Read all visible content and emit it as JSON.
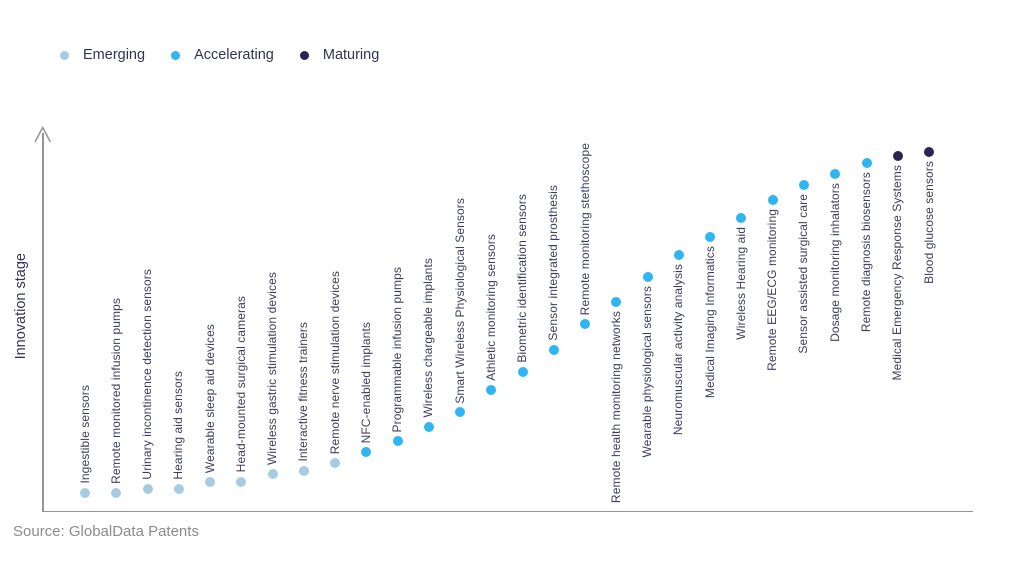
{
  "legend": {
    "items": [
      {
        "label": "Emerging",
        "color": "#a6cbe2"
      },
      {
        "label": "Accelerating",
        "color": "#2eb5f2"
      },
      {
        "label": "Maturing",
        "color": "#2b2552"
      }
    ]
  },
  "source": "Source: GlobalData Patents",
  "chart_data": {
    "type": "scatter",
    "title": "",
    "xlabel": "",
    "ylabel": "Innovation stage",
    "ylim": [
      0,
      100
    ],
    "grid": false,
    "legend_position": "top-left",
    "stages": {
      "Emerging": "#a6cbe2",
      "Accelerating": "#2eb5f2",
      "Maturing": "#2b2552"
    },
    "points": [
      {
        "label": "Ingestible sensors",
        "stage": "Emerging",
        "score": 5
      },
      {
        "label": "Remote monitored infusion pumps",
        "stage": "Emerging",
        "score": 5
      },
      {
        "label": "Urinary incontinence detection sensors",
        "stage": "Emerging",
        "score": 6
      },
      {
        "label": "Hearing aid sensors",
        "stage": "Emerging",
        "score": 6
      },
      {
        "label": "Wearable sleep aid devices",
        "stage": "Emerging",
        "score": 8
      },
      {
        "label": "Head-mounted surgical cameras",
        "stage": "Emerging",
        "score": 8
      },
      {
        "label": "Wireless gastric stimulation devices",
        "stage": "Emerging",
        "score": 10
      },
      {
        "label": "Interactive fitness trainers",
        "stage": "Emerging",
        "score": 11
      },
      {
        "label": "Remote nerve stimulation devices",
        "stage": "Emerging",
        "score": 13
      },
      {
        "label": "NFC-enabled implants",
        "stage": "Accelerating",
        "score": 16
      },
      {
        "label": "Programmable infusion pumps",
        "stage": "Accelerating",
        "score": 19
      },
      {
        "label": "Wireless chargeable implants",
        "stage": "Accelerating",
        "score": 23
      },
      {
        "label": "Smart Wireless Physiological Sensors",
        "stage": "Accelerating",
        "score": 27
      },
      {
        "label": "Athletic monitoring sensors",
        "stage": "Accelerating",
        "score": 33
      },
      {
        "label": "Biometric identification sensors",
        "stage": "Accelerating",
        "score": 38
      },
      {
        "label": "Sensor integrated prosthesis",
        "stage": "Accelerating",
        "score": 44
      },
      {
        "label": "Remote monitoring stethoscope",
        "stage": "Accelerating",
        "score": 51
      },
      {
        "label": "Remote health monitoring networks",
        "stage": "Accelerating",
        "score": 57
      },
      {
        "label": "Wearable physiological sensors",
        "stage": "Accelerating",
        "score": 64
      },
      {
        "label": "Neuromuscular activity analysis",
        "stage": "Accelerating",
        "score": 70
      },
      {
        "label": "Medical Imaging Informatics",
        "stage": "Accelerating",
        "score": 75
      },
      {
        "label": "Wireless Hearing aid",
        "stage": "Accelerating",
        "score": 80
      },
      {
        "label": "Remote EEG/ECG monitoring",
        "stage": "Accelerating",
        "score": 85
      },
      {
        "label": "Sensor assisted surgical care",
        "stage": "Accelerating",
        "score": 89
      },
      {
        "label": "Dosage monitoring inhalators",
        "stage": "Accelerating",
        "score": 92
      },
      {
        "label": "Remote diagnosis biosensors",
        "stage": "Accelerating",
        "score": 95
      },
      {
        "label": "Medical Emergency Response Systems",
        "stage": "Maturing",
        "score": 97
      },
      {
        "label": "Blood glucose sensors",
        "stage": "Maturing",
        "score": 98
      }
    ]
  }
}
